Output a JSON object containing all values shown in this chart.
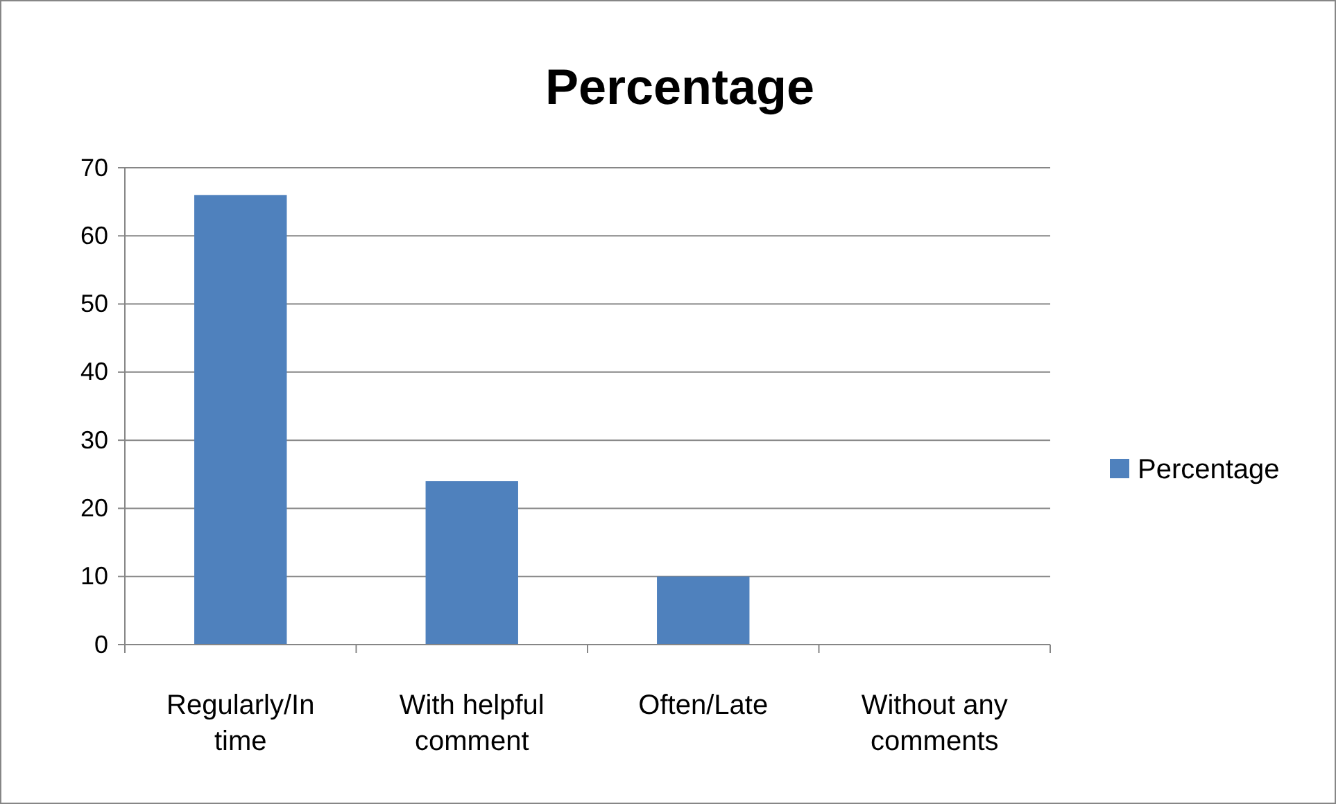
{
  "chart_data": {
    "type": "bar",
    "title": "Percentage",
    "categories": [
      "Regularly/In time",
      "With helpful comment",
      "Often/Late",
      "Without any comments"
    ],
    "series": [
      {
        "name": "Percentage",
        "color": "#4f81bd",
        "values": [
          66,
          24,
          10,
          0
        ]
      }
    ],
    "ylim": [
      0,
      70
    ],
    "yticks": [
      0,
      10,
      20,
      30,
      40,
      50,
      60,
      70
    ],
    "grid": "y",
    "legend": "right"
  }
}
